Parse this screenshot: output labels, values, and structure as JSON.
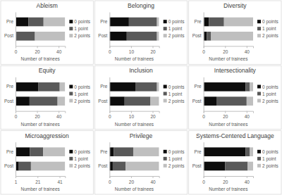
{
  "chart_data": [
    {
      "type": "bar",
      "orientation": "horizontal",
      "stacked": true,
      "legend": "right",
      "title": "Ableism",
      "xlabel": "Number of trainees",
      "categories": [
        "Pre",
        "Post"
      ],
      "xlim": [
        0,
        46
      ],
      "xticks": [
        0,
        20,
        40
      ],
      "series": [
        {
          "name": "0 points",
          "color": "#0d0d0d",
          "values": [
            12,
            1
          ]
        },
        {
          "name": "1 point",
          "color": "#595959",
          "values": [
            14,
            17
          ]
        },
        {
          "name": "2 points",
          "color": "#bfbfbf",
          "values": [
            20,
            28
          ]
        }
      ]
    },
    {
      "type": "bar",
      "orientation": "horizontal",
      "stacked": true,
      "legend": "right",
      "title": "Belonging",
      "xlabel": "Number of trainees",
      "categories": [
        "Pre",
        "Post"
      ],
      "xlim": [
        0,
        23
      ],
      "xticks": [
        0,
        10,
        20
      ],
      "series": [
        {
          "name": "0 points",
          "color": "#0d0d0d",
          "values": [
            9,
            8
          ]
        },
        {
          "name": "1 point",
          "color": "#595959",
          "values": [
            13,
            14
          ]
        },
        {
          "name": "2 points",
          "color": "#bfbfbf",
          "values": [
            1,
            1
          ]
        }
      ]
    },
    {
      "type": "bar",
      "orientation": "horizontal",
      "stacked": true,
      "legend": "right",
      "title": "Diversity",
      "xlabel": "Number of trainees",
      "categories": [
        "Pre",
        "Post"
      ],
      "xlim": [
        0,
        46
      ],
      "xticks": [
        0,
        20,
        40
      ],
      "series": [
        {
          "name": "0 points",
          "color": "#0d0d0d",
          "values": [
            5,
            3
          ]
        },
        {
          "name": "1 point",
          "color": "#595959",
          "values": [
            14,
            4
          ]
        },
        {
          "name": "2 points",
          "color": "#bfbfbf",
          "values": [
            27,
            39
          ]
        }
      ]
    },
    {
      "type": "bar",
      "orientation": "horizontal",
      "stacked": true,
      "legend": "right",
      "title": "Equity",
      "xlabel": "Number of trainees",
      "categories": [
        "Pre",
        "Post"
      ],
      "xlim": [
        0,
        46
      ],
      "xticks": [
        0,
        20,
        40
      ],
      "series": [
        {
          "name": "0 points",
          "color": "#0d0d0d",
          "values": [
            21,
            13
          ]
        },
        {
          "name": "1 point",
          "color": "#595959",
          "values": [
            20,
            26
          ]
        },
        {
          "name": "2 points",
          "color": "#bfbfbf",
          "values": [
            5,
            7
          ]
        }
      ]
    },
    {
      "type": "bar",
      "orientation": "horizontal",
      "stacked": true,
      "legend": "right",
      "title": "Inclusion",
      "xlabel": "Number of trainees",
      "categories": [
        "Pre",
        "Post"
      ],
      "xlim": [
        0,
        23
      ],
      "xticks": [
        0,
        10,
        20
      ],
      "series": [
        {
          "name": "0 points",
          "color": "#0d0d0d",
          "values": [
            12,
            7
          ]
        },
        {
          "name": "1 point",
          "color": "#595959",
          "values": [
            10,
            12
          ]
        },
        {
          "name": "2 points",
          "color": "#bfbfbf",
          "values": [
            1,
            4
          ]
        }
      ]
    },
    {
      "type": "bar",
      "orientation": "horizontal",
      "stacked": true,
      "legend": "right",
      "title": "Intersectionality",
      "xlabel": "Number of trainees",
      "categories": [
        "Pre",
        "Post"
      ],
      "xlim": [
        0,
        46
      ],
      "xticks": [
        0,
        20,
        40
      ],
      "series": [
        {
          "name": "0 points",
          "color": "#0d0d0d",
          "values": [
            39,
            12
          ]
        },
        {
          "name": "1 point",
          "color": "#595959",
          "values": [
            4,
            28
          ]
        },
        {
          "name": "2 points",
          "color": "#bfbfbf",
          "values": [
            3,
            6
          ]
        }
      ]
    },
    {
      "type": "bar",
      "orientation": "horizontal",
      "stacked": true,
      "legend": "right",
      "title": "Microaggression",
      "xlabel": "Number of trainees",
      "categories": [
        "Pre",
        "Post"
      ],
      "xlim": [
        1,
        46
      ],
      "xticks": [
        1,
        21,
        41
      ],
      "series": [
        {
          "name": "0 points",
          "color": "#0d0d0d",
          "values": [
            14,
            4
          ]
        },
        {
          "name": "1 point",
          "color": "#595959",
          "values": [
            12,
            11
          ]
        },
        {
          "name": "2 points",
          "color": "#bfbfbf",
          "values": [
            20,
            31
          ]
        }
      ]
    },
    {
      "type": "bar",
      "orientation": "horizontal",
      "stacked": true,
      "legend": "right",
      "title": "Privilege",
      "xlabel": "Number of trainees",
      "categories": [
        "Pre",
        "Post"
      ],
      "xlim": [
        0,
        46
      ],
      "xticks": [
        0,
        20,
        40
      ],
      "series": [
        {
          "name": "0 points",
          "color": "#0d0d0d",
          "values": [
            4,
            3
          ]
        },
        {
          "name": "1 point",
          "color": "#595959",
          "values": [
            18,
            12
          ]
        },
        {
          "name": "2 points",
          "color": "#bfbfbf",
          "values": [
            24,
            31
          ]
        }
      ]
    },
    {
      "type": "bar",
      "orientation": "horizontal",
      "stacked": true,
      "legend": "right",
      "title": "Systems-Centered Language",
      "xlabel": "Number of trainees",
      "categories": [
        "Pre",
        "Post"
      ],
      "xlim": [
        0,
        46
      ],
      "xticks": [
        0,
        20,
        40
      ],
      "series": [
        {
          "name": "0 points",
          "color": "#0d0d0d",
          "values": [
            39,
            20
          ]
        },
        {
          "name": "1 point",
          "color": "#595959",
          "values": [
            4,
            21
          ]
        },
        {
          "name": "2 points",
          "color": "#bfbfbf",
          "values": [
            3,
            5
          ]
        }
      ]
    }
  ]
}
